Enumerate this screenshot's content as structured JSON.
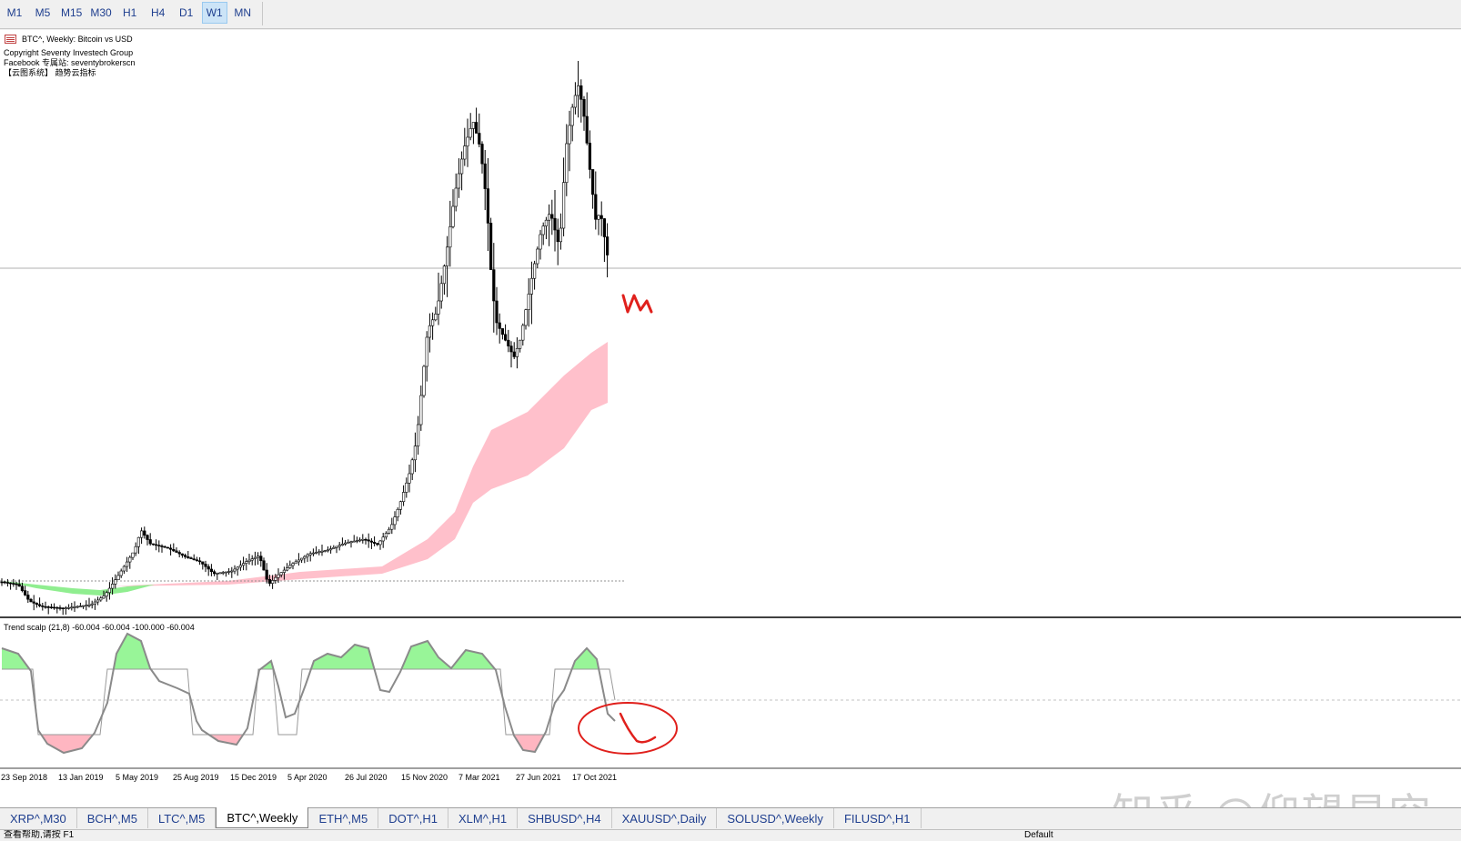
{
  "toolbar": {
    "timeframes": [
      "M1",
      "M5",
      "M15",
      "M30",
      "H1",
      "H4",
      "D1",
      "W1",
      "MN"
    ],
    "active": "W1"
  },
  "chart": {
    "symbol_line": "BTC^, Weekly:  Bitcoin vs USD",
    "copyright": "Copyright Seventy Investech Group",
    "facebook": " Facebook 专属站: seventybrokerscn",
    "slogan": "【云图系统】 趋势云指标",
    "indicator_label": "Trend scalp (21,8) -60.004 -60.004 -100.000 -60.004",
    "x_labels": [
      "23 Sep 2018",
      "13 Jan 2019",
      "5 May 2019",
      "25 Aug 2019",
      "15 Dec 2019",
      "5 Apr 2020",
      "26 Jul 2020",
      "15 Nov 2020",
      "7 Mar 2021",
      "27 Jun 2021",
      "17 Oct 2021"
    ],
    "colors": {
      "bull_cloud": "#ffc0cb",
      "bear_cloud": "#90ee90",
      "annotation": "#e0201c",
      "indicator_up": "#1e8fe0",
      "indicator_down": "#e05010"
    }
  },
  "tabs": {
    "items": [
      "XRP^,M30",
      "BCH^,M5",
      "LTC^,M5",
      "BTC^,Weekly",
      "ETH^,M5",
      "DOT^,H1",
      "XLM^,H1",
      "SHBUSD^,H4",
      "XAUUSD^,Daily",
      "SOLUSD^,Weekly",
      "FILUSD^,H1"
    ],
    "active": "BTC^,Weekly"
  },
  "status": {
    "left": "查看帮助,请按 F1",
    "mid": "Default"
  },
  "watermark": "知乎 @仰望星空"
}
